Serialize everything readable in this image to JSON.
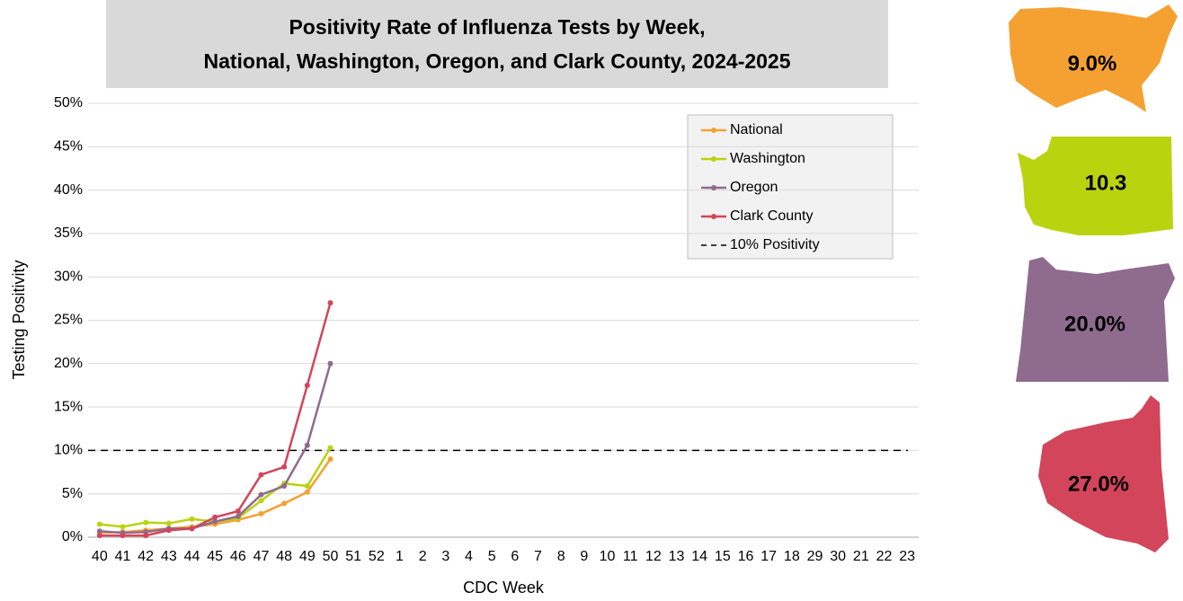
{
  "chart_data": {
    "type": "line",
    "title": "Positivity Rate of Influenza Tests by Week,",
    "subtitle": "National, Washington, Oregon, and Clark County, 2024-2025",
    "x_label": "CDC Week",
    "y_label": "Testing Positivity",
    "categories": [
      "40",
      "41",
      "42",
      "43",
      "44",
      "45",
      "46",
      "47",
      "48",
      "49",
      "50",
      "51",
      "52",
      "1",
      "2",
      "3",
      "4",
      "5",
      "6",
      "7",
      "8",
      "9",
      "10",
      "11",
      "12",
      "13",
      "14",
      "15",
      "16",
      "17",
      "18",
      "29",
      "30",
      "21",
      "22",
      "23"
    ],
    "series": [
      {
        "name": "National",
        "color": "#f4a132",
        "values": [
          0.5,
          0.6,
          0.8,
          1.0,
          1.2,
          1.5,
          2.0,
          2.7,
          3.9,
          5.2,
          9.0,
          null,
          null,
          null,
          null,
          null,
          null,
          null,
          null,
          null,
          null,
          null,
          null,
          null,
          null,
          null,
          null,
          null,
          null,
          null,
          null,
          null,
          null,
          null,
          null,
          null
        ]
      },
      {
        "name": "Washington",
        "color": "#b9d30f",
        "values": [
          1.5,
          1.2,
          1.7,
          1.6,
          2.1,
          1.8,
          2.2,
          4.2,
          6.2,
          5.9,
          10.3,
          null,
          null,
          null,
          null,
          null,
          null,
          null,
          null,
          null,
          null,
          null,
          null,
          null,
          null,
          null,
          null,
          null,
          null,
          null,
          null,
          null,
          null,
          null,
          null,
          null
        ]
      },
      {
        "name": "Oregon",
        "color": "#8f6b8e",
        "values": [
          0.7,
          0.5,
          0.6,
          1.0,
          1.0,
          1.8,
          2.4,
          4.9,
          5.9,
          10.6,
          20.0,
          null,
          null,
          null,
          null,
          null,
          null,
          null,
          null,
          null,
          null,
          null,
          null,
          null,
          null,
          null,
          null,
          null,
          null,
          null,
          null,
          null,
          null,
          null,
          null,
          null
        ]
      },
      {
        "name": "Clark County",
        "color": "#d2455a",
        "values": [
          0.2,
          0.2,
          0.2,
          0.8,
          1.0,
          2.3,
          3.0,
          7.2,
          8.1,
          17.5,
          27.0,
          null,
          null,
          null,
          null,
          null,
          null,
          null,
          null,
          null,
          null,
          null,
          null,
          null,
          null,
          null,
          null,
          null,
          null,
          null,
          null,
          null,
          null,
          null,
          null,
          null
        ]
      }
    ],
    "reference": {
      "name": "10% Positivity",
      "value": 10
    },
    "ylim": [
      0,
      50
    ],
    "yticks": [
      {
        "value": 0,
        "label": "0%"
      },
      {
        "value": 5,
        "label": "5%"
      },
      {
        "value": 10,
        "label": "10%"
      },
      {
        "value": 15,
        "label": "15%"
      },
      {
        "value": 20,
        "label": "20%"
      },
      {
        "value": 25,
        "label": "25%"
      },
      {
        "value": 30,
        "label": "30%"
      },
      {
        "value": 35,
        "label": "35%"
      },
      {
        "value": 40,
        "label": "40%"
      },
      {
        "value": 45,
        "label": "45%"
      },
      {
        "value": 50,
        "label": "50%"
      }
    ],
    "grid": true,
    "legend": "top-right",
    "badges": [
      {
        "label": "9.0%",
        "color": "#f4a132"
      },
      {
        "label": "10.3",
        "color": "#b9d30f"
      },
      {
        "label": "20.0%",
        "color": "#8f6b8e"
      },
      {
        "label": "27.0%",
        "color": "#d2455a"
      }
    ]
  }
}
